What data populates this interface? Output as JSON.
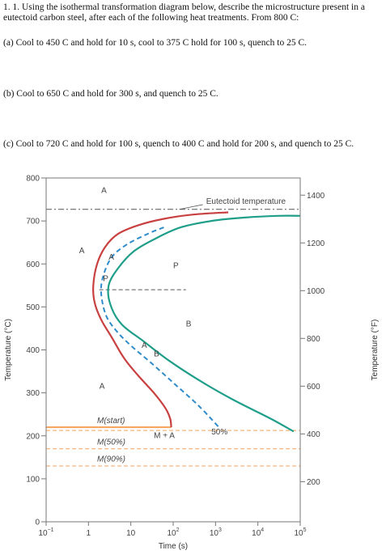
{
  "question": {
    "intro": "1.  1.  Using the isothermal transformation diagram below, describe the microstructure present in a eutectoid carbon steel, after each of the following heat treatments. From 800 C:",
    "a": "(a) Cool to 450 C and hold for 10 s, cool to 375 C hold for 100 s, quench to 25 C.",
    "b": "(b) Cool to 650 C and hold for 300 s, and quench to 25 C.",
    "c": "(c) Cool to 720 C and hold for 100 s, quench to 400 C and hold for 200 s, and quench to 25 C."
  },
  "chart_data": {
    "type": "line",
    "xlabel": "Time (s)",
    "ylabel": "Temperature (°C)",
    "ylabel_right": "Temperature (°F)",
    "x_scale": "log",
    "xlim": [
      0.1,
      100000
    ],
    "ylim": [
      0,
      800
    ],
    "x_ticks": [
      {
        "value": 0.1,
        "base": "10",
        "exp": "−1"
      },
      {
        "value": 1,
        "base": "1",
        "exp": ""
      },
      {
        "value": 10,
        "base": "10",
        "exp": ""
      },
      {
        "value": 100,
        "base": "10",
        "exp": "2"
      },
      {
        "value": 1000,
        "base": "10",
        "exp": "3"
      },
      {
        "value": 10000,
        "base": "10",
        "exp": "4"
      },
      {
        "value": 100000,
        "base": "10",
        "exp": "5"
      }
    ],
    "y_ticks": [
      0,
      100,
      200,
      300,
      400,
      500,
      600,
      700,
      800
    ],
    "y_ticks_right_F": [
      200,
      400,
      600,
      800,
      1000,
      1200,
      1400
    ],
    "eutectoid_temperature": 727,
    "ms_temperature": 220,
    "m50_temperature": 170,
    "m90_temperature": 130,
    "colors": {
      "start_curve": "#c8403f",
      "finish_curve": "#1f9e8a",
      "fifty_curve": "#2f8bc9",
      "martensite": "#f5a35a",
      "axis": "#777777"
    },
    "series": [
      {
        "name": "",
        "color": "#c8403f",
        "x": [
          2000,
          300,
          60,
          15,
          5,
          2.5,
          1.6,
          1.3,
          1.4,
          2,
          3.5,
          7,
          15,
          35,
          65,
          85,
          90
        ],
        "y": [
          720,
          715,
          705,
          690,
          670,
          640,
          600,
          550,
          510,
          470,
          430,
          380,
          340,
          300,
          265,
          240,
          220
        ]
      },
      {
        "name": "",
        "color": "#1f9e8a",
        "x": [
          100000,
          30000,
          5000,
          800,
          150,
          40,
          12,
          5,
          3,
          3.3,
          6,
          20,
          80,
          400,
          2500,
          20000,
          70000
        ],
        "y": [
          712,
          712,
          708,
          700,
          685,
          660,
          630,
          590,
          550,
          505,
          460,
          420,
          375,
          330,
          285,
          240,
          210
        ]
      },
      {
        "name": "50%",
        "color": "#2f8bc9",
        "x": [
          60,
          25,
          8,
          3.5,
          2.2,
          2,
          2.6,
          4.5,
          10,
          30,
          110,
          400,
          1200
        ],
        "y": [
          685,
          670,
          645,
          615,
          570,
          530,
          480,
          445,
          410,
          370,
          320,
          270,
          220
        ]
      }
    ],
    "annotations": [
      {
        "text": "Eutectoid temperature",
        "x": 600,
        "y": 740
      },
      {
        "text": "A",
        "x": 2,
        "y": 765
      },
      {
        "text": "A",
        "x": 0.6,
        "y": 625
      },
      {
        "text": "A",
        "x": 3,
        "y": 610
      },
      {
        "text": "P",
        "x": 2.2,
        "y": 560
      },
      {
        "text": "P",
        "x": 100,
        "y": 590
      },
      {
        "text": "B",
        "x": 200,
        "y": 455
      },
      {
        "text": "A",
        "x": 18,
        "y": 405
      },
      {
        "text": "B",
        "x": 35,
        "y": 385
      },
      {
        "text": "A",
        "x": 1.8,
        "y": 310
      },
      {
        "text": "M(start)",
        "x": 1.6,
        "y": 230
      },
      {
        "text": "M + A",
        "x": 35,
        "y": 195
      },
      {
        "text": "50%",
        "x": 800,
        "y": 203
      },
      {
        "text": "M(50%)",
        "x": 1.6,
        "y": 180
      },
      {
        "text": "M(90%)",
        "x": 1.6,
        "y": 140
      }
    ]
  }
}
